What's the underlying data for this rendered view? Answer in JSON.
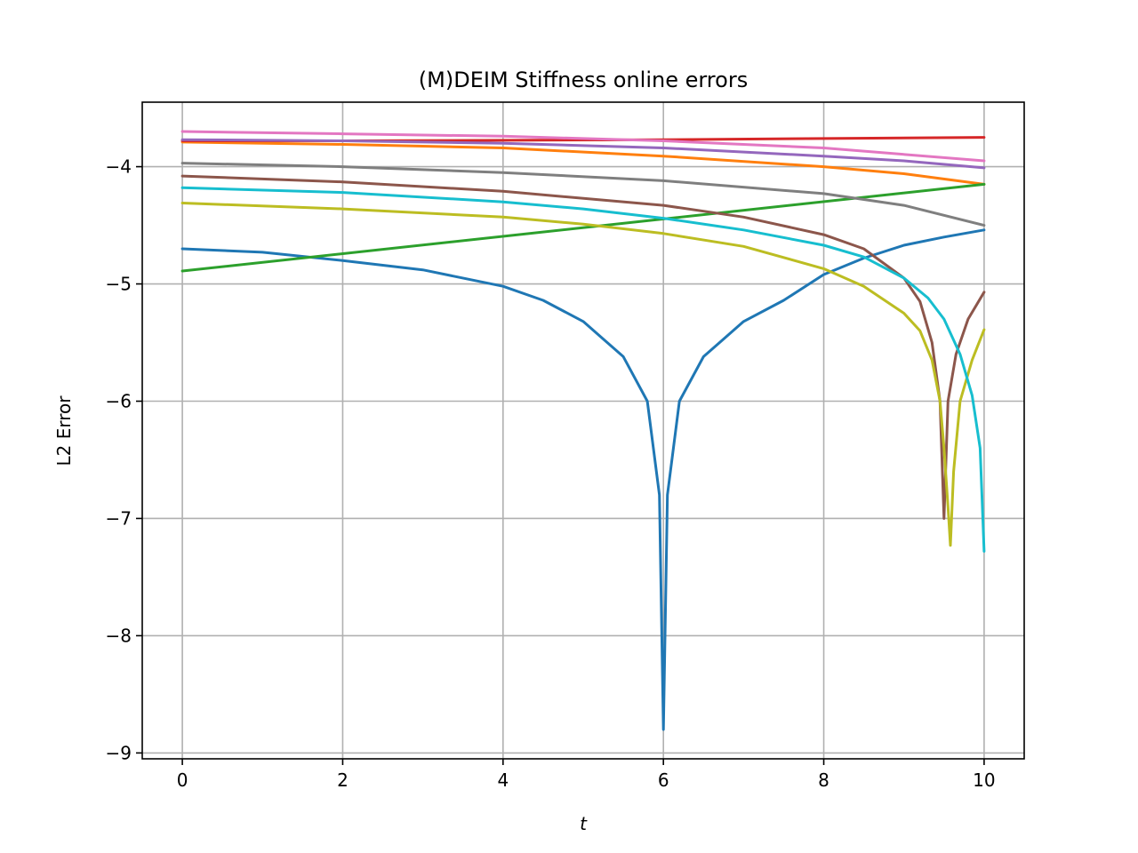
{
  "chart_data": {
    "type": "line",
    "title": "(M)DEIM Stiffness online errors",
    "xlabel": "t",
    "ylabel": "L2 Error",
    "xlim": [
      -0.5,
      10.5
    ],
    "ylim": [
      -9.05,
      -3.45
    ],
    "xticks": [
      0,
      2,
      4,
      6,
      8,
      10
    ],
    "yticks": [
      -9,
      -8,
      -7,
      -6,
      -5,
      -4
    ],
    "xtick_labels": [
      "0",
      "2",
      "4",
      "6",
      "8",
      "10"
    ],
    "ytick_labels": [
      "−9",
      "−8",
      "−7",
      "−6",
      "−5",
      "−4"
    ],
    "grid": true,
    "legend": "none",
    "series": [
      {
        "color": "#1f77b4",
        "x": [
          0,
          1,
          2,
          3,
          4,
          4.5,
          5,
          5.5,
          5.8,
          5.95,
          6,
          6.05,
          6.2,
          6.5,
          7,
          7.5,
          8,
          8.5,
          9,
          9.5,
          10
        ],
        "y": [
          -4.7,
          -4.73,
          -4.8,
          -4.88,
          -5.02,
          -5.14,
          -5.32,
          -5.62,
          -6.0,
          -6.8,
          -8.8,
          -6.8,
          -6.0,
          -5.62,
          -5.32,
          -5.14,
          -4.92,
          -4.78,
          -4.67,
          -4.6,
          -4.54
        ]
      },
      {
        "color": "#ff7f0e",
        "x": [
          0,
          2,
          4,
          6,
          8,
          9,
          10
        ],
        "y": [
          -3.79,
          -3.81,
          -3.84,
          -3.91,
          -4.0,
          -4.06,
          -4.15
        ]
      },
      {
        "color": "#2ca02c",
        "x": [
          0,
          10
        ],
        "y": [
          -4.89,
          -4.15
        ]
      },
      {
        "color": "#d62728",
        "x": [
          0,
          2,
          4,
          6,
          8,
          10
        ],
        "y": [
          -3.78,
          -3.78,
          -3.775,
          -3.77,
          -3.76,
          -3.75
        ]
      },
      {
        "color": "#9467bd",
        "x": [
          0,
          2,
          4,
          6,
          8,
          9,
          10
        ],
        "y": [
          -3.77,
          -3.78,
          -3.8,
          -3.84,
          -3.91,
          -3.95,
          -4.01
        ]
      },
      {
        "color": "#8c564b",
        "x": [
          0,
          2,
          4,
          6,
          7,
          8,
          8.5,
          9,
          9.2,
          9.35,
          9.45,
          9.5,
          9.55,
          9.65,
          9.8,
          10
        ],
        "y": [
          -4.08,
          -4.13,
          -4.21,
          -4.33,
          -4.43,
          -4.58,
          -4.7,
          -4.95,
          -5.15,
          -5.5,
          -6.0,
          -7.0,
          -6.0,
          -5.6,
          -5.3,
          -5.07
        ]
      },
      {
        "color": "#e377c2",
        "x": [
          0,
          2,
          4,
          6,
          8,
          10
        ],
        "y": [
          -3.7,
          -3.72,
          -3.74,
          -3.78,
          -3.84,
          -3.95
        ]
      },
      {
        "color": "#7f7f7f",
        "x": [
          0,
          2,
          4,
          6,
          8,
          9,
          10
        ],
        "y": [
          -3.97,
          -4.0,
          -4.05,
          -4.12,
          -4.23,
          -4.33,
          -4.5
        ]
      },
      {
        "color": "#bcbd22",
        "x": [
          0,
          2,
          4,
          5,
          6,
          7,
          8,
          8.5,
          9,
          9.2,
          9.35,
          9.45,
          9.5,
          9.55,
          9.58,
          9.62,
          9.7,
          9.85,
          10
        ],
        "y": [
          -4.31,
          -4.36,
          -4.43,
          -4.49,
          -4.57,
          -4.68,
          -4.87,
          -5.02,
          -5.25,
          -5.4,
          -5.65,
          -6.0,
          -6.4,
          -6.9,
          -7.23,
          -6.6,
          -6.0,
          -5.65,
          -5.39
        ]
      },
      {
        "color": "#17becf",
        "x": [
          0,
          2,
          4,
          5,
          6,
          7,
          8,
          8.5,
          9,
          9.3,
          9.5,
          9.7,
          9.85,
          9.95,
          10
        ],
        "y": [
          -4.18,
          -4.22,
          -4.3,
          -4.36,
          -4.44,
          -4.54,
          -4.67,
          -4.77,
          -4.95,
          -5.12,
          -5.3,
          -5.6,
          -5.95,
          -6.4,
          -7.28
        ]
      }
    ]
  }
}
